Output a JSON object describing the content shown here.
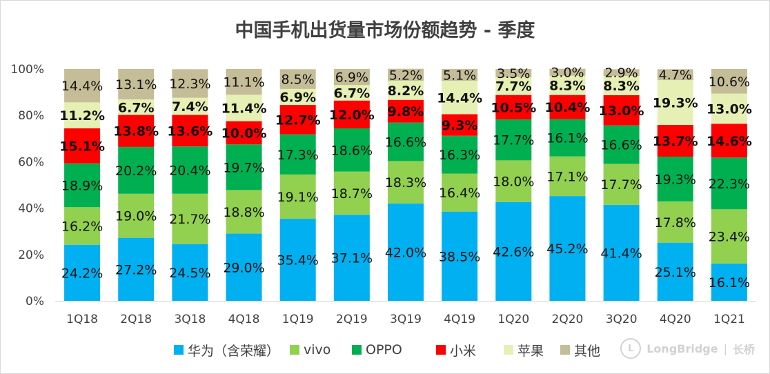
{
  "title": "中国手机出货量市场份额趋势 - 季度",
  "watermark": {
    "brand": "LongBridge",
    "sep": "|",
    "cn": "长桥"
  },
  "colors": {
    "huawei": "#00b0f0",
    "vivo": "#92d050",
    "oppo": "#00b050",
    "xiaomi": "#ff0000",
    "apple": "#e6f0b4",
    "other": "#c4bd97"
  },
  "chart_data": {
    "type": "bar",
    "stacked": true,
    "title": "中国手机出货量市场份额趋势 - 季度",
    "categories": [
      "1Q18",
      "2Q18",
      "3Q18",
      "4Q18",
      "1Q19",
      "2Q19",
      "3Q19",
      "4Q19",
      "1Q20",
      "2Q20",
      "3Q20",
      "4Q20",
      "1Q21"
    ],
    "yticks": [
      "0%",
      "20%",
      "40%",
      "60%",
      "80%",
      "100%"
    ],
    "ylim": [
      0,
      100
    ],
    "legend_position": "bottom",
    "series": [
      {
        "name": "华为（含荣耀）",
        "key": "huawei",
        "bold": false,
        "values": [
          24.2,
          27.2,
          24.5,
          29.0,
          35.4,
          37.1,
          42.0,
          38.5,
          42.6,
          45.2,
          41.4,
          25.1,
          16.1
        ],
        "labels": [
          "24.2%",
          "27.2%",
          "24.5%",
          "29.0%",
          "35.4%",
          "37.1%",
          "42.0%",
          "38.5%",
          "42.6%",
          "45.2%",
          "41.4%",
          "25.1%",
          "16.1%"
        ]
      },
      {
        "name": "vivo",
        "key": "vivo",
        "bold": false,
        "values": [
          16.2,
          19.0,
          21.7,
          18.8,
          19.1,
          18.7,
          18.3,
          16.4,
          18.0,
          17.1,
          17.7,
          17.8,
          23.4
        ],
        "labels": [
          "16.2%",
          "19.0%",
          "21.7%",
          "18.8%",
          "19.1%",
          "18.7%",
          "18.3%",
          "16.4%",
          "18.0%",
          "17.1%",
          "17.7%",
          "17.8%",
          "23.4%"
        ]
      },
      {
        "name": "OPPO",
        "key": "oppo",
        "bold": false,
        "values": [
          18.9,
          20.2,
          20.4,
          19.7,
          17.3,
          18.6,
          16.6,
          16.3,
          17.7,
          16.1,
          16.6,
          19.3,
          22.3
        ],
        "labels": [
          "18.9%",
          "20.2%",
          "20.4%",
          "19.7%",
          "17.3%",
          "18.6%",
          "16.6%",
          "16.3%",
          "17.7%",
          "16.1%",
          "16.6%",
          "19.3%",
          "22.3%"
        ]
      },
      {
        "name": "小米",
        "key": "xiaomi",
        "bold": true,
        "values": [
          15.1,
          13.8,
          13.6,
          10.0,
          12.7,
          12.0,
          9.8,
          9.3,
          10.5,
          10.4,
          13.0,
          13.7,
          14.6
        ],
        "labels": [
          "15.1%",
          "13.8%",
          "13.6%",
          "10.0%",
          "12.7%",
          "12.0%",
          "9.8%",
          "9.3%",
          "10.5%",
          "10.4%",
          "13.0%",
          "13.7%",
          "14.6%"
        ]
      },
      {
        "name": "苹果",
        "key": "apple",
        "bold": true,
        "values": [
          11.2,
          6.7,
          7.4,
          11.4,
          6.9,
          6.7,
          8.2,
          14.4,
          7.7,
          8.3,
          8.3,
          19.3,
          13.0
        ],
        "labels": [
          "11.2%",
          "6.7%",
          "7.4%",
          "11.4%",
          "6.9%",
          "6.7%",
          "8.2%",
          "14.4%",
          "7.7%",
          "8.3%",
          "8.3%",
          "19.3%",
          "13.0%"
        ]
      },
      {
        "name": "其他",
        "key": "other",
        "bold": false,
        "values": [
          14.4,
          13.1,
          12.3,
          11.1,
          8.5,
          6.9,
          5.2,
          5.1,
          3.5,
          3.0,
          2.9,
          4.7,
          10.6
        ],
        "labels": [
          "14.4%",
          "13.1%",
          "12.3%",
          "11.1%",
          "8.5%",
          "6.9%",
          "5.2%",
          "5.1%",
          "3.5%",
          "3.0%",
          "2.9%",
          "4.7%",
          "10.6%"
        ]
      }
    ]
  }
}
